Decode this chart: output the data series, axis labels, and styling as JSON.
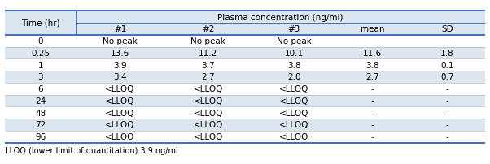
{
  "header_top": "Plasma concentration (ng/ml)",
  "header_row": [
    "Time (hr)",
    "#1",
    "#2",
    "#3",
    "mean",
    "SD"
  ],
  "rows": [
    [
      "0",
      "No peak",
      "No peak",
      "No peak",
      "",
      ""
    ],
    [
      "0.25",
      "13.6",
      "11.2",
      "10.1",
      "11.6",
      "1.8"
    ],
    [
      "1",
      "3.9",
      "3.7",
      "3.8",
      "3.8",
      "0.1"
    ],
    [
      "3",
      "3.4",
      "2.7",
      "2.0",
      "2.7",
      "0.7"
    ],
    [
      "6",
      "<LLOQ",
      "<LLOQ",
      "<LLOQ",
      "-",
      "-"
    ],
    [
      "24",
      "<LLOQ",
      "<LLOQ",
      "<LLOQ",
      "-",
      "-"
    ],
    [
      "48",
      "<LLOQ",
      "<LLOQ",
      "<LLOQ",
      "-",
      "-"
    ],
    [
      "72",
      "<LLOQ",
      "<LLOQ",
      "<LLOQ",
      "-",
      "-"
    ],
    [
      "96",
      "<LLOQ",
      "<LLOQ",
      "<LLOQ",
      "-",
      "-"
    ]
  ],
  "footnote": "LLOQ (lower limit of quantitation) 3.9 ng/ml",
  "bg_color_light": "#dce6f1",
  "bg_color_white": "#ffffff",
  "header_bg": "#dce6f1",
  "line_color": "#4472c4",
  "text_color": "#000000",
  "font_size": 7.5
}
